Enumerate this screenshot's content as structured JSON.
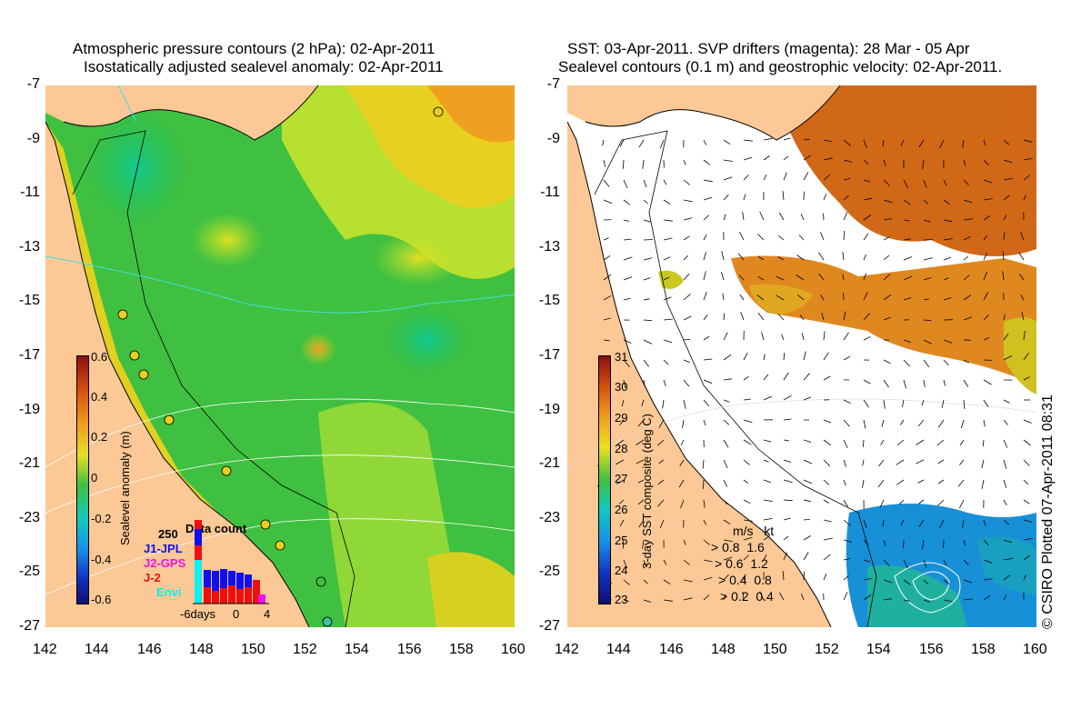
{
  "left_panel": {
    "title_line1": "Atmospheric pressure contours (2 hPa): 02-Apr-2011",
    "title_line2": "Isostatically adjusted sealevel anomaly: 02-Apr-2011",
    "colorbar_label": "Sealevel anomaly (m)",
    "colorbar_ticks": [
      "0.6",
      "0.4",
      "0.2",
      "0",
      "-0.2",
      "-0.4",
      "-0.6"
    ],
    "data_count": {
      "title": "Data count",
      "max_label": "250",
      "missions": [
        {
          "name": "J1-JPL",
          "color": "#1010ee"
        },
        {
          "name": "J2-GPS",
          "color": "#ee10ee"
        },
        {
          "name": "J-2",
          "color": "#ee1010"
        },
        {
          "name": "Envi",
          "color": "#10eeee"
        }
      ],
      "x_labels": [
        "-6days",
        "0",
        "4"
      ]
    }
  },
  "right_panel": {
    "title_line1": "SST: 03-Apr-2011. SVP drifters (magenta): 28 Mar - 05 Apr",
    "title_line2": "Sealevel contours (0.1 m) and geostrophic velocity: 02-Apr-2011.",
    "colorbar_label": "3-day SST composite (deg C)",
    "colorbar_ticks": [
      "31",
      "30",
      "29",
      "28",
      "27",
      "26",
      "25",
      "24",
      "23"
    ],
    "speed_legend": {
      "header": [
        "m/s",
        "kt"
      ],
      "rows": [
        [
          "0.8",
          "1.6"
        ],
        [
          "0.6",
          "1.2"
        ],
        [
          "0.4",
          "0.8"
        ],
        [
          "0.2",
          "0.4"
        ]
      ]
    },
    "credit": "© CSIRO Plotted 07-Apr-2011 08:31"
  },
  "axes": {
    "x_ticks": [
      "142",
      "144",
      "146",
      "148",
      "150",
      "152",
      "154",
      "156",
      "158",
      "160"
    ],
    "y_ticks": [
      "-7",
      "-9",
      "-11",
      "-13",
      "-15",
      "-17",
      "-19",
      "-21",
      "-23",
      "-25",
      "-27"
    ],
    "lon_range": [
      142,
      160
    ],
    "lat_range": [
      -27,
      -7
    ]
  },
  "colors": {
    "land": "#fbc896",
    "sla_low": "#10c050",
    "sla_mid": "#c8e830",
    "sla_high": "#f0a020",
    "sst_warm": "#d06818",
    "sst_cool": "#1890d8"
  }
}
